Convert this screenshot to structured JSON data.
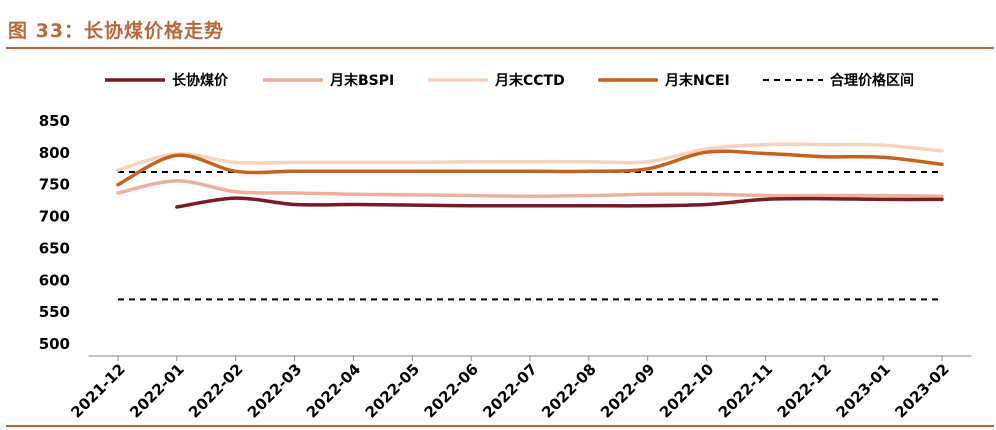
{
  "figure": {
    "title": "图 33：长协煤价格走势",
    "accent_color": "#b8683a"
  },
  "chart_data": {
    "type": "line",
    "title": "",
    "xlabel": "",
    "ylabel": "",
    "ylim": [
      500,
      850
    ],
    "y_ticks": [
      500,
      550,
      600,
      650,
      700,
      750,
      800,
      850
    ],
    "categories": [
      "2021-12",
      "2022-01",
      "2022-02",
      "2022-03",
      "2022-04",
      "2022-05",
      "2022-06",
      "2022-07",
      "2022-08",
      "2022-09",
      "2022-10",
      "2022-11",
      "2022-12",
      "2023-01",
      "2023-02"
    ],
    "grid": false,
    "legend_position": "top",
    "series": [
      {
        "name": "长协煤价",
        "color": "#7a1a24",
        "dash": false,
        "values": [
          null,
          715,
          729,
          719,
          719,
          718,
          717,
          717,
          717,
          717,
          719,
          727,
          728,
          727,
          727
        ]
      },
      {
        "name": "月末BSPI",
        "color": "#eeb19c",
        "dash": false,
        "values": [
          737,
          756,
          739,
          737,
          735,
          734,
          733,
          732,
          733,
          735,
          735,
          733,
          733,
          733,
          732
        ]
      },
      {
        "name": "月末CCTD",
        "color": "#f6d3bf",
        "dash": false,
        "values": [
          773,
          798,
          785,
          785,
          785,
          785,
          786,
          786,
          786,
          786,
          806,
          813,
          813,
          812,
          803
        ]
      },
      {
        "name": "月末NCEI",
        "color": "#c4621e",
        "dash": false,
        "values": [
          750,
          796,
          771,
          771,
          771,
          771,
          771,
          771,
          771,
          775,
          801,
          799,
          794,
          793,
          782
        ]
      },
      {
        "name": "合理价格区间",
        "color": "#000000",
        "dash": true,
        "values": [
          770,
          770,
          770,
          770,
          770,
          770,
          770,
          770,
          770,
          770,
          770,
          770,
          770,
          770,
          770
        ]
      },
      {
        "name": "",
        "color": "#000000",
        "dash": true,
        "legend": false,
        "values": [
          570,
          570,
          570,
          570,
          570,
          570,
          570,
          570,
          570,
          570,
          570,
          570,
          570,
          570,
          570
        ]
      }
    ]
  }
}
